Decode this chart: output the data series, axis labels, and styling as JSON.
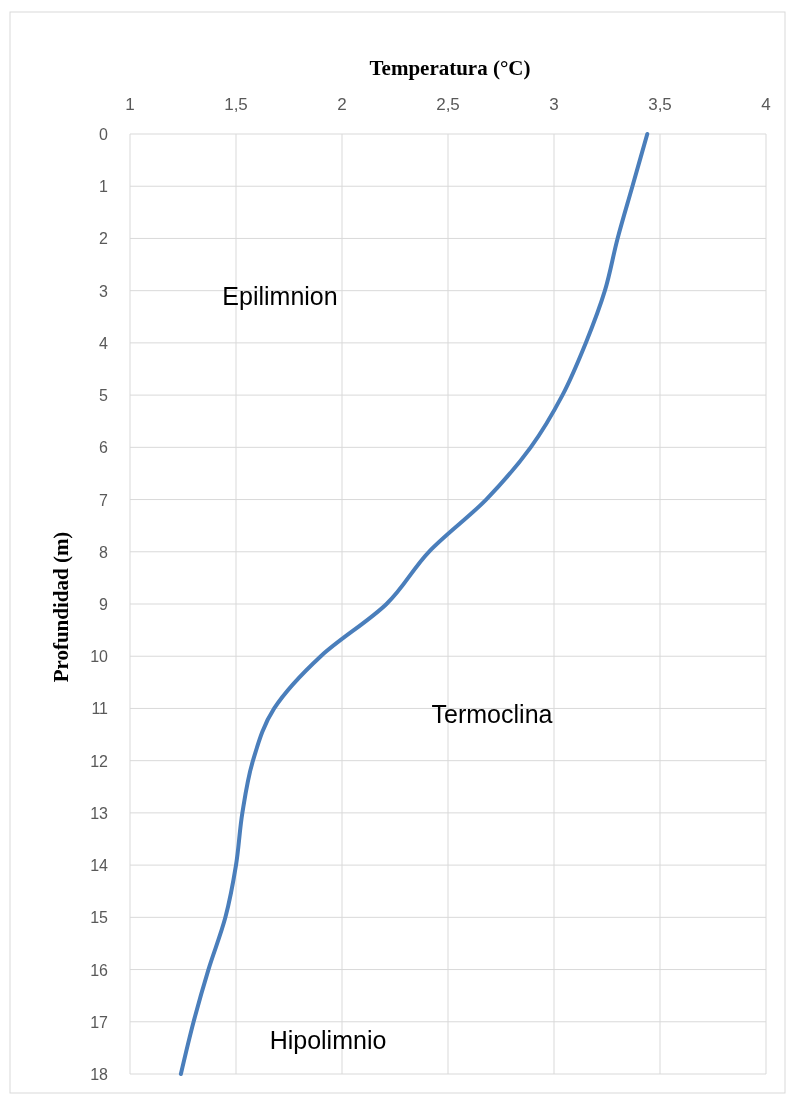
{
  "chart_data": {
    "type": "line",
    "xlabel": "Temperatura (°C)",
    "ylabel": "Profundidad (m)",
    "xlim": [
      1,
      4
    ],
    "xticks": [
      1,
      {
        "value": 1.5,
        "label": "1,5"
      },
      2,
      {
        "value": 2.5,
        "label": "2,5"
      },
      3,
      {
        "value": 3.5,
        "label": "3,5"
      },
      4
    ],
    "ylim": [
      18,
      0
    ],
    "yticks": [
      0,
      1,
      2,
      3,
      4,
      5,
      6,
      7,
      8,
      9,
      10,
      11,
      12,
      13,
      14,
      15,
      16,
      17,
      18
    ],
    "grid": true,
    "marker": "none",
    "line_style": "solid",
    "series": [
      {
        "color": "#4a7ebb",
        "x": [
          3.44,
          3.37,
          3.3,
          3.24,
          3.15,
          3.04,
          2.89,
          2.68,
          2.41,
          2.21,
          1.9,
          1.68,
          1.58,
          1.53,
          1.5,
          1.45,
          1.37,
          1.3,
          1.24
        ],
        "values": [
          0,
          1,
          2,
          3,
          4,
          5,
          6,
          7,
          8,
          9,
          10,
          11,
          12,
          13,
          14,
          15,
          16,
          17,
          18
        ]
      }
    ],
    "annotations": [
      "Epilimnion",
      "Termoclina",
      "Hipolimnio"
    ]
  }
}
